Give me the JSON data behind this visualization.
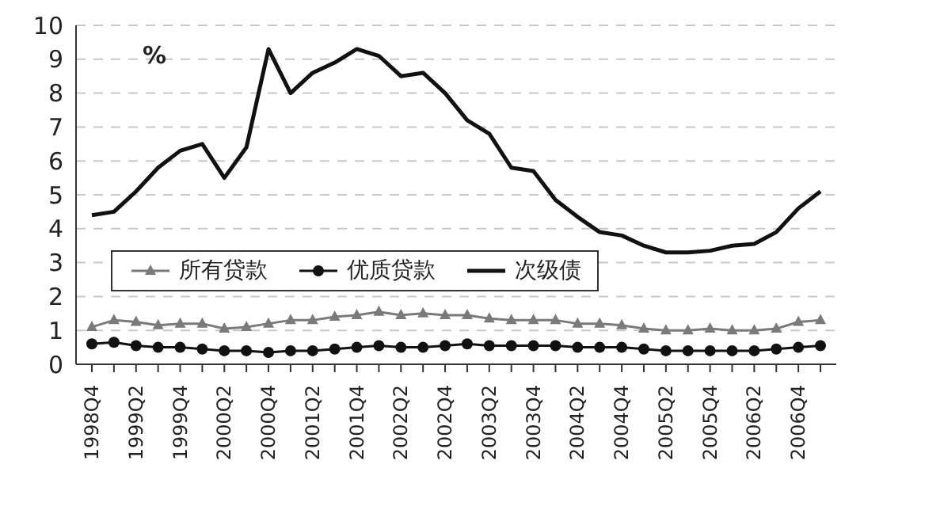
{
  "chart_data": {
    "type": "line",
    "ylabel": "%",
    "categories": [
      "1998Q4",
      null,
      "1999Q2",
      null,
      "1999Q4",
      null,
      "2000Q2",
      null,
      "2000Q4",
      null,
      "2001Q2",
      null,
      "2001Q4",
      null,
      "2002Q2",
      null,
      "2002Q4",
      null,
      "2003Q2",
      null,
      "2003Q4",
      null,
      "2004Q2",
      null,
      "2004Q4",
      null,
      "2005Q2",
      null,
      "2005Q4",
      null,
      "2006Q2",
      null,
      "2006Q4",
      null
    ],
    "series": [
      {
        "name": "所有贷款",
        "color": "#7a7a7a",
        "marker": "triangle",
        "values": [
          1.1,
          1.3,
          1.25,
          1.15,
          1.2,
          1.2,
          1.05,
          1.1,
          1.2,
          1.3,
          1.3,
          1.4,
          1.45,
          1.55,
          1.45,
          1.5,
          1.45,
          1.45,
          1.35,
          1.3,
          1.3,
          1.3,
          1.2,
          1.2,
          1.15,
          1.05,
          1.0,
          1.0,
          1.05,
          1.0,
          1.0,
          1.05,
          1.25,
          1.3
        ]
      },
      {
        "name": "优质贷款",
        "color": "#111111",
        "marker": "circle",
        "values": [
          0.6,
          0.65,
          0.55,
          0.5,
          0.5,
          0.45,
          0.4,
          0.4,
          0.35,
          0.4,
          0.4,
          0.45,
          0.5,
          0.55,
          0.5,
          0.5,
          0.55,
          0.6,
          0.55,
          0.55,
          0.55,
          0.55,
          0.5,
          0.5,
          0.5,
          0.45,
          0.4,
          0.4,
          0.4,
          0.4,
          0.4,
          0.45,
          0.5,
          0.55
        ]
      },
      {
        "name": "次级债",
        "color": "#111111",
        "marker": "none",
        "values": [
          4.4,
          4.5,
          5.1,
          5.8,
          6.3,
          6.5,
          5.5,
          6.4,
          9.3,
          8.0,
          8.6,
          8.9,
          9.3,
          9.1,
          8.5,
          8.6,
          8.0,
          7.2,
          6.8,
          5.8,
          5.7,
          4.85,
          4.35,
          3.9,
          3.8,
          3.5,
          3.3,
          3.3,
          3.35,
          3.5,
          3.55,
          3.9,
          4.6,
          5.1
        ]
      }
    ],
    "ylim": [
      0,
      10
    ],
    "yticks": [
      0,
      1,
      2,
      3,
      4,
      5,
      6,
      7,
      8,
      9,
      10
    ],
    "grid": "y",
    "legend": "left",
    "line_style": "solid"
  }
}
